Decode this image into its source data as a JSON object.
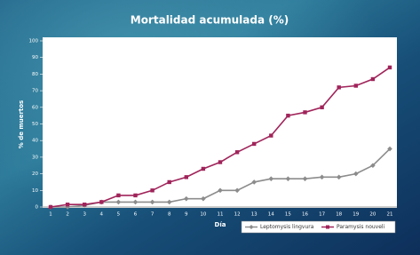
{
  "chart_data": {
    "type": "line",
    "title": "Mortalidad acumulada (%)",
    "x_label": "Día",
    "y_label": "% de muertos",
    "categories": [
      "1",
      "2",
      "3",
      "4",
      "5",
      "6",
      "7",
      "8",
      "9",
      "10",
      "11",
      "12",
      "13",
      "14",
      "15",
      "16",
      "17",
      "18",
      "19",
      "20",
      "21"
    ],
    "series": [
      {
        "name": "Leptomysis lingvura",
        "color": "#8c8c8c",
        "marker": "diamond",
        "values": [
          0,
          0,
          1,
          3,
          3,
          3,
          3,
          3,
          5,
          5,
          10,
          10,
          15,
          17,
          17,
          17,
          18,
          18,
          20,
          25,
          35
        ]
      },
      {
        "name": "Paramysis nouveli",
        "color": "#a0245a",
        "marker": "square",
        "values": [
          0,
          1.5,
          1.5,
          3,
          7,
          7,
          10,
          15,
          18,
          23,
          27,
          33,
          38,
          43,
          55,
          57,
          60,
          72,
          73,
          77,
          84
        ]
      }
    ],
    "ylim": [
      0,
      100
    ],
    "yticks": [
      0,
      10,
      20,
      30,
      40,
      50,
      60,
      70,
      80,
      90,
      100
    ],
    "grid": false,
    "legend": "bottom-right"
  }
}
